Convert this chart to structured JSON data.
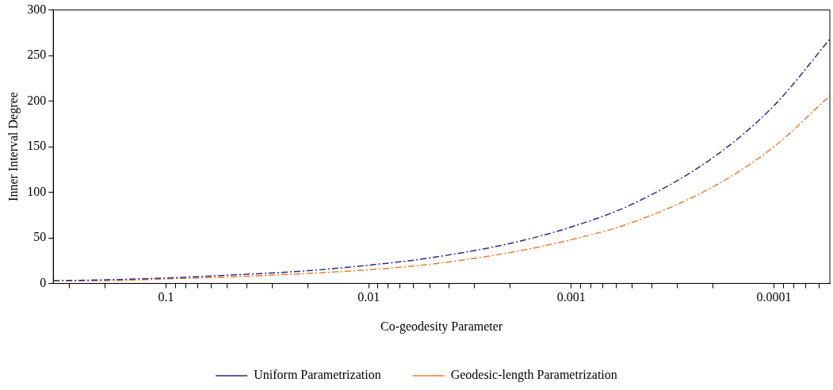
{
  "chart_data": {
    "type": "line",
    "xlabel": "Co-geodesity Parameter",
    "ylabel": "Inner Interval Degree",
    "log": "x",
    "xlim": [
      0.36,
      5.3e-05
    ],
    "ylim": [
      0,
      300
    ],
    "xticks": [
      {
        "value": 0.3,
        "label": null
      },
      {
        "value": 0.2,
        "label": null
      },
      0.1,
      {
        "value": 0.09,
        "label": null
      },
      {
        "value": 0.08,
        "label": null
      },
      {
        "value": 0.07,
        "label": null
      },
      {
        "value": 0.06,
        "label": null
      },
      {
        "value": 0.05,
        "label": null
      },
      {
        "value": 0.04,
        "label": null
      },
      {
        "value": 0.03,
        "label": null
      },
      {
        "value": 0.02,
        "label": null
      },
      0.01,
      {
        "value": 0.009,
        "label": null
      },
      {
        "value": 0.008,
        "label": null
      },
      {
        "value": 0.007,
        "label": null
      },
      {
        "value": 0.006,
        "label": null
      },
      {
        "value": 0.005,
        "label": null
      },
      {
        "value": 0.004,
        "label": null
      },
      {
        "value": 0.003,
        "label": null
      },
      {
        "value": 0.002,
        "label": null
      },
      0.001,
      {
        "value": 0.0009,
        "label": null
      },
      {
        "value": 0.0008,
        "label": null
      },
      {
        "value": 0.0007,
        "label": null
      },
      {
        "value": 0.0006,
        "label": null
      },
      {
        "value": 0.0005,
        "label": null
      },
      {
        "value": 0.0004,
        "label": null
      },
      {
        "value": 0.0003,
        "label": null
      },
      {
        "value": 0.0002,
        "label": null
      },
      0.0001,
      {
        "value": 9e-05,
        "label": null
      },
      {
        "value": 8e-05,
        "label": null
      },
      {
        "value": 7e-05,
        "label": null
      },
      {
        "value": 6e-05,
        "label": null
      }
    ],
    "yticks": [
      0,
      50,
      100,
      150,
      200,
      250,
      300
    ],
    "x": [
      0.36,
      0.2,
      0.1,
      0.05,
      0.02,
      0.01,
      0.005,
      0.002,
      0.001,
      0.0005,
      0.0002,
      0.0001,
      5.3e-05
    ],
    "series": [
      {
        "name": "Uniform Parametrization",
        "color": "#2e2a8f",
        "values": [
          3,
          4,
          6,
          9,
          14,
          20,
          28,
          44,
          62,
          87,
          138,
          195,
          268
        ]
      },
      {
        "name": "Geodesic-length Parametrization",
        "color": "#f57a2a",
        "values": [
          3,
          3,
          5,
          7,
          11,
          15,
          21,
          34,
          48,
          67,
          106,
          150,
          206
        ]
      }
    ],
    "grid": false,
    "legend": "bottom",
    "marker": "none",
    "line_style": "dashed"
  }
}
